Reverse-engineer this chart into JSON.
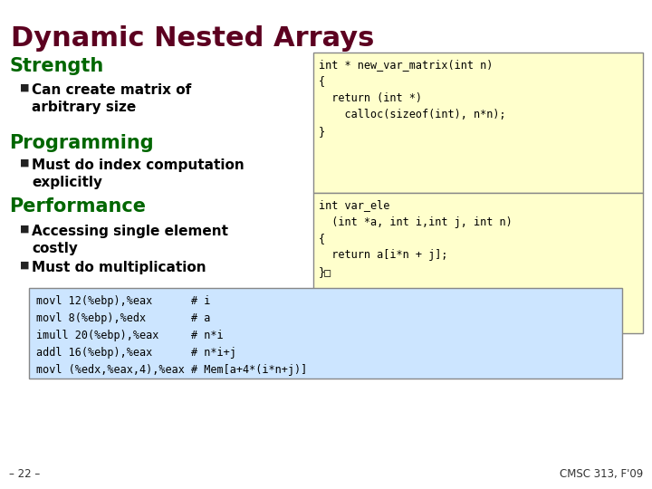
{
  "title": "Dynamic Nested Arrays",
  "title_color": "#5C0020",
  "title_fontsize": 22,
  "bg_color": "#FFFFFF",
  "section_color": "#006600",
  "section_fontsize": 15,
  "bullet_color": "#000000",
  "bullet_fontsize": 11,
  "bullet_marker_color": "#333333",
  "code_fontsize": 8.5,
  "code_bg_yellow": "#FFFFCC",
  "code_bg_blue": "#CCE5FF",
  "code_border": "#888888",
  "footer_left": "– 22 –",
  "footer_right": "CMSC 313, F'09",
  "code_block1": "int * new_var_matrix(int n)\n{\n  return (int *)\n    calloc(sizeof(int), n*n);\n}",
  "code_block2": "int var_ele\n  (int *a, int i,int j, int n)\n{\n  return a[i*n + j];\n}□",
  "code_block3": "movl 12(%ebp),%eax      # i\nmovl 8(%ebp),%edx       # a\nimull 20(%ebp),%eax     # n*i\naddl 16(%ebp),%eax      # n*i+j\nmovl (%edx,%eax,4),%eax # Mem[a+4*(i*n+j)]"
}
